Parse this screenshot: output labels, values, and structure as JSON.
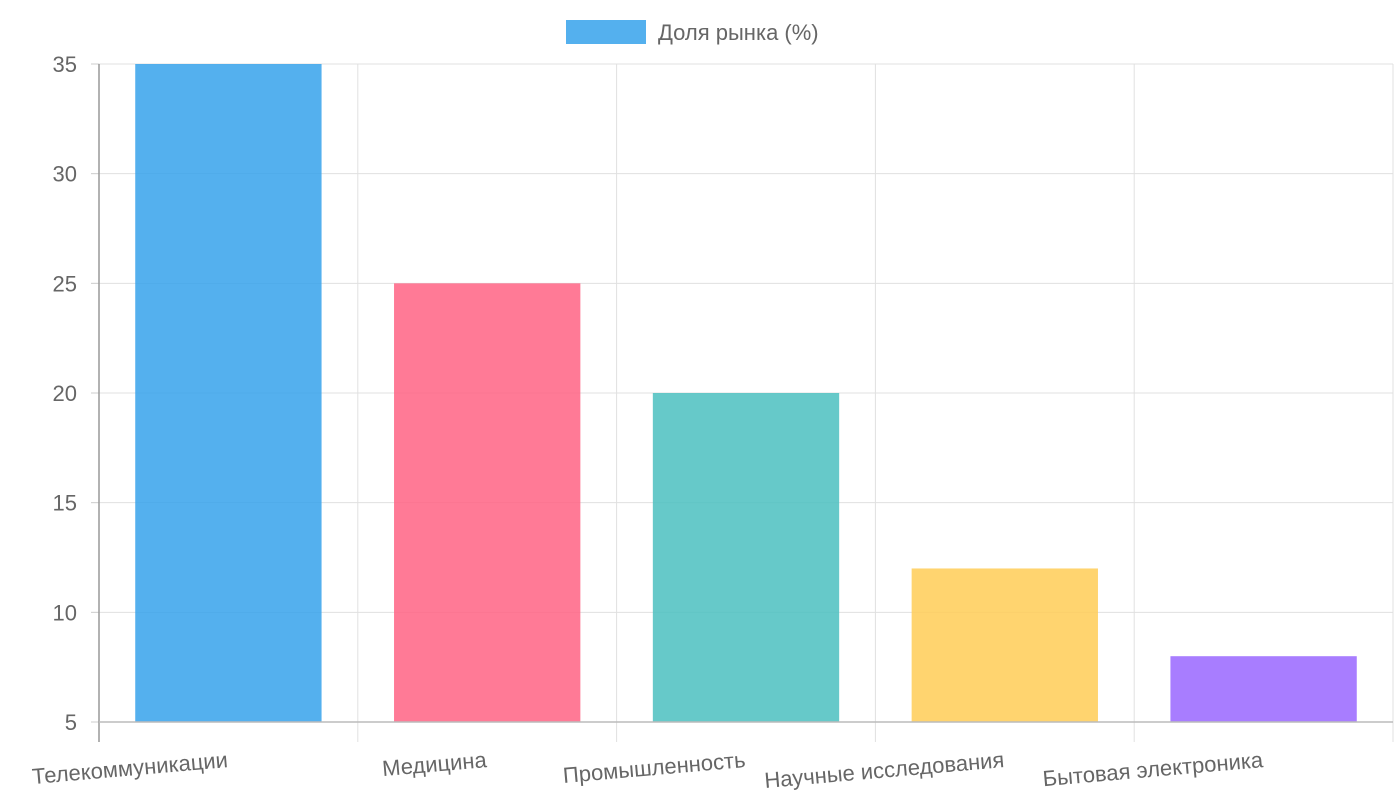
{
  "chart_data": {
    "type": "bar",
    "categories": [
      "Телекоммуникации",
      "Медицина",
      "Промышленность",
      "Научные исследования",
      "Бытовая электроника"
    ],
    "series": [
      {
        "name": "Доля рынка (%)",
        "values": [
          35,
          25,
          20,
          12,
          8
        ]
      }
    ],
    "bar_colors": [
      "#36a2eb",
      "#ff6384",
      "#4bc0c0",
      "#ffcd56",
      "#9966ff"
    ],
    "yticks": [
      5,
      10,
      15,
      20,
      25,
      30,
      35
    ],
    "ylim": [
      5,
      35
    ],
    "grid": true,
    "legend_position": "top-center",
    "xlabel": "",
    "ylabel": ""
  }
}
